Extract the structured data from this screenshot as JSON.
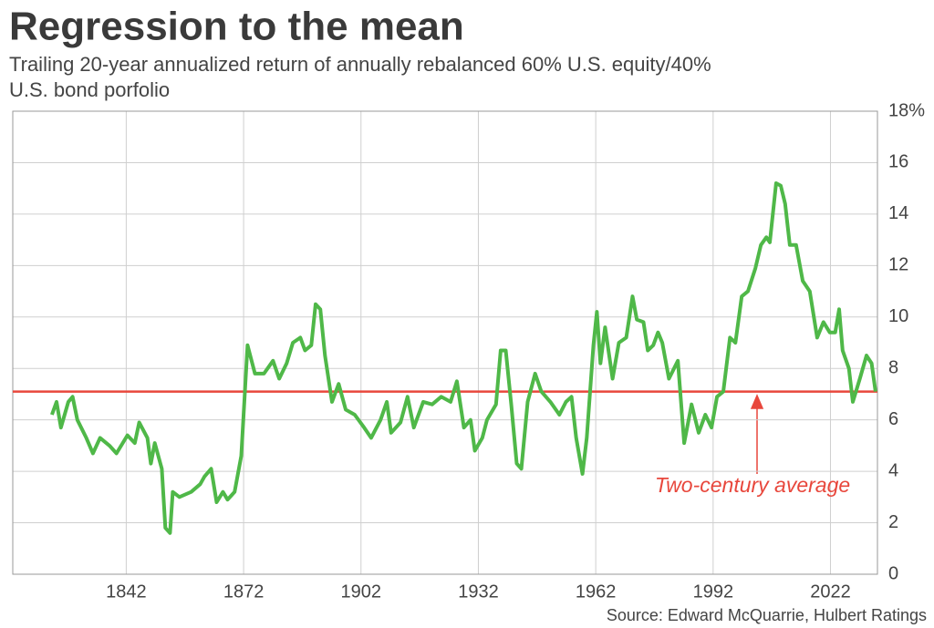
{
  "chart_data": {
    "type": "line",
    "title": "Regression to the mean",
    "subtitle": [
      "Trailing 20-year annualized return of annually rebalanced 60% U.S. equity/40%",
      "U.S. bond porfolio"
    ],
    "source": "Source: Edward McQuarrie, Hulbert Ratings",
    "x": [
      1823,
      1824.2,
      1825.3,
      1827.2,
      1828.3,
      1829.5,
      1831.8,
      1833.5,
      1835.3,
      1837.7,
      1839.5,
      1842.3,
      1844.2,
      1845.3,
      1847.4,
      1848.3,
      1849.3,
      1851.1,
      1852,
      1853.2,
      1853.9,
      1855.6,
      1858.6,
      1860.9,
      1862,
      1863.7,
      1865.1,
      1866.7,
      1867.9,
      1869.7,
      1871.4,
      1873,
      1874.9,
      1877.2,
      1879.5,
      1881.1,
      1883,
      1884.6,
      1886.5,
      1887.7,
      1889.3,
      1890.4,
      1891.6,
      1892.8,
      1894.6,
      1896.3,
      1898.1,
      1900.4,
      1902.8,
      1904.6,
      1907,
      1908.6,
      1909.7,
      1912.1,
      1913.9,
      1915.5,
      1917.9,
      1920.2,
      1922.5,
      1924.9,
      1926.5,
      1928.3,
      1930,
      1931.1,
      1933,
      1934.2,
      1936.5,
      1937.7,
      1939,
      1940.4,
      1941.8,
      1943,
      1944.6,
      1946.5,
      1948.1,
      1950.4,
      1952.7,
      1954.4,
      1955.8,
      1957,
      1958.6,
      1959.7,
      1961.4,
      1962.3,
      1963.2,
      1964.4,
      1966.3,
      1967.9,
      1969.8,
      1971.4,
      1972.5,
      1974.2,
      1975.3,
      1976.7,
      1977.9,
      1979,
      1980.7,
      1983,
      1984.6,
      1986.5,
      1988.3,
      1990,
      1991.6,
      1993,
      1994.6,
      1996.3,
      1997.7,
      1999.3,
      2000.9,
      2002.8,
      2004.2,
      2005.6,
      2006.5,
      2008.1,
      2009.3,
      2010.4,
      2011.6,
      2013.2,
      2014.9,
      2016.7,
      2018.6,
      2020.2,
      2021.8,
      2023.2,
      2024.2,
      2025.1,
      2026.7,
      2027.7,
      2029.5,
      2031.2,
      2032.5,
      2033.5
    ],
    "series": [
      {
        "color": "#4fb848",
        "values": [
          6.2,
          6.7,
          5.7,
          6.7,
          6.9,
          6.0,
          5.3,
          4.7,
          5.3,
          5.0,
          4.7,
          5.4,
          5.1,
          5.9,
          5.3,
          4.3,
          5.1,
          4.1,
          1.8,
          1.6,
          3.2,
          3.0,
          3.2,
          3.5,
          3.8,
          4.1,
          2.8,
          3.2,
          2.9,
          3.2,
          4.6,
          8.9,
          7.8,
          7.8,
          8.3,
          7.6,
          8.2,
          9.0,
          9.2,
          8.7,
          8.9,
          10.5,
          10.3,
          8.5,
          6.7,
          7.4,
          6.4,
          6.2,
          5.7,
          5.3,
          6.0,
          6.7,
          5.5,
          5.9,
          6.9,
          5.7,
          6.7,
          6.6,
          6.9,
          6.7,
          7.5,
          5.7,
          6.0,
          4.8,
          5.3,
          6.0,
          6.6,
          8.7,
          8.7,
          6.6,
          4.3,
          4.1,
          6.7,
          7.8,
          7.1,
          6.7,
          6.2,
          6.7,
          6.9,
          5.3,
          3.9,
          5.3,
          8.9,
          10.2,
          8.2,
          9.6,
          7.6,
          9.0,
          9.2,
          10.8,
          9.9,
          9.8,
          8.7,
          8.9,
          9.4,
          9.0,
          7.6,
          8.3,
          5.1,
          6.6,
          5.5,
          6.2,
          5.7,
          6.9,
          7.1,
          9.2,
          9.0,
          10.8,
          11.0,
          11.9,
          12.8,
          13.1,
          12.9,
          15.2,
          15.1,
          14.4,
          12.8,
          12.8,
          11.4,
          11.0,
          9.2,
          9.8,
          9.4,
          9.4,
          10.3,
          8.7,
          8.0,
          6.7,
          7.6,
          8.5,
          8.2,
          7.1
        ]
      }
    ],
    "reference_line": {
      "value": 7.1,
      "label": "Two-century average",
      "color": "#e8473c"
    },
    "xlim": [
      1813,
      2034
    ],
    "xticks": [
      1842,
      1872,
      1902,
      1932,
      1962,
      1992,
      2022
    ],
    "ylim": [
      0,
      18
    ],
    "yticks": [
      0,
      2,
      4,
      6,
      8,
      10,
      12,
      14,
      16,
      {
        "value": 18,
        "label": "18%"
      }
    ],
    "grid": true
  }
}
